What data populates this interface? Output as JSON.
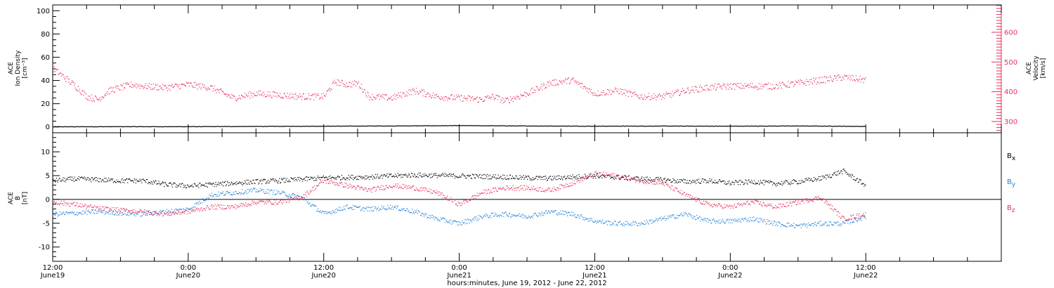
{
  "figure": {
    "footer_label": "hours:minutes, June 19, 2012 - June 22, 2012"
  },
  "colors": {
    "black": "#000000",
    "pink": "#e8305a",
    "blue": "#1f80d8"
  },
  "chart_data": [
    {
      "type": "scatter",
      "panel": "top",
      "ylabel_lines": [
        "ACE",
        "Ion Density",
        "[cm⁻³]"
      ],
      "ylabel_right_lines": [
        "ACE",
        "Velocity",
        "[km/s]"
      ],
      "ylim": [
        -5,
        105
      ],
      "y_ticks": [
        0,
        20,
        40,
        60,
        80,
        100
      ],
      "y_tick_labels": [
        "0",
        "20",
        "40",
        "60",
        "80",
        "100"
      ],
      "ylim_right": [
        262,
        692
      ],
      "y_ticks_right": [
        300,
        400,
        500,
        600
      ],
      "y_tick_labels_right": [
        "300",
        "400",
        "500",
        "600"
      ],
      "x_hours_range": [
        0,
        84
      ],
      "x_tick_hours": [
        0,
        12,
        24,
        36,
        48,
        60,
        72
      ],
      "x_tick_labels": [
        [
          "12:00",
          "June19"
        ],
        [
          "0:00",
          "June20"
        ],
        [
          "12:00",
          "June20"
        ],
        [
          "0:00",
          "June21"
        ],
        [
          "12:00",
          "June21"
        ],
        [
          "0:00",
          "June22"
        ],
        [
          "12:00",
          "June22"
        ]
      ],
      "series": [
        {
          "color": "#000000",
          "axis": "left",
          "x": [
            0,
            6,
            12,
            18,
            24,
            30,
            36,
            42,
            48,
            54,
            60,
            66,
            72
          ],
          "y": [
            0.5,
            0.6,
            0.6,
            0.8,
            1.0,
            1.2,
            1.5,
            1.2,
            1.0,
            1.1,
            1.0,
            1.2,
            0.8
          ]
        },
        {
          "color": "#e8305a",
          "axis": "right",
          "x": [
            0,
            1,
            2,
            3,
            4,
            5,
            6,
            7,
            8,
            10,
            12,
            14,
            16,
            18,
            20,
            22,
            24,
            25,
            26,
            27,
            28,
            30,
            32,
            34,
            36,
            38,
            39,
            40,
            42,
            44,
            46,
            48,
            50,
            52,
            54,
            56,
            58,
            60,
            62,
            64,
            66,
            68,
            70,
            72
          ],
          "y": [
            480,
            450,
            420,
            385,
            375,
            405,
            415,
            425,
            420,
            415,
            425,
            415,
            380,
            395,
            390,
            385,
            385,
            435,
            425,
            430,
            385,
            380,
            405,
            385,
            380,
            375,
            385,
            370,
            395,
            430,
            440,
            395,
            405,
            385,
            385,
            405,
            415,
            420,
            420,
            420,
            430,
            440,
            450,
            440
          ]
        }
      ]
    },
    {
      "type": "scatter",
      "panel": "bottom",
      "ylabel_lines": [
        "ACE",
        "B",
        "[nT]"
      ],
      "ylim": [
        -13,
        14
      ],
      "y_ticks": [
        -10,
        -5,
        0,
        5,
        10
      ],
      "y_tick_labels": [
        "-10",
        "-5",
        "0",
        "5",
        "10"
      ],
      "x_hours_range": [
        0,
        84
      ],
      "x_tick_hours": [
        0,
        12,
        24,
        36,
        48,
        60,
        72
      ],
      "legend_position": "right",
      "legend": [
        {
          "text": "B",
          "sub": "x",
          "color": "#000000"
        },
        {
          "text": "B",
          "sub": "y",
          "color": "#1f80d8"
        },
        {
          "text": "B",
          "sub": "z",
          "color": "#e8305a"
        }
      ],
      "series": [
        {
          "color": "#000000",
          "x": [
            0,
            2,
            4,
            6,
            8,
            10,
            12,
            14,
            16,
            18,
            20,
            22,
            24,
            26,
            28,
            30,
            32,
            34,
            36,
            38,
            40,
            42,
            44,
            46,
            48,
            50,
            52,
            54,
            56,
            58,
            60,
            62,
            64,
            66,
            68,
            70,
            72
          ],
          "y": [
            4,
            4.4,
            4.2,
            4,
            4,
            3.2,
            2.9,
            3.2,
            3.5,
            3.8,
            4,
            4.3,
            4.6,
            4.7,
            4.8,
            5,
            5.2,
            5.1,
            5,
            4.9,
            4.8,
            4.6,
            4.5,
            4.8,
            5,
            4.7,
            4.4,
            4.2,
            3.8,
            4,
            3.5,
            3.8,
            3.4,
            3.8,
            4.5,
            6,
            3
          ]
        },
        {
          "color": "#1f80d8",
          "x": [
            0,
            2,
            4,
            6,
            8,
            10,
            12,
            14,
            16,
            18,
            20,
            22,
            24,
            26,
            28,
            30,
            32,
            34,
            36,
            38,
            40,
            42,
            44,
            46,
            48,
            50,
            52,
            54,
            56,
            58,
            60,
            62,
            64,
            66,
            68,
            70,
            72
          ],
          "y": [
            -3,
            -2.8,
            -2.5,
            -2.8,
            -3,
            -2.5,
            -2,
            1,
            1.5,
            2,
            1.5,
            0.5,
            -3,
            -1.5,
            -2,
            -1.5,
            -2.5,
            -4,
            -5,
            -3.5,
            -3,
            -3.5,
            -2.5,
            -3,
            -4.5,
            -5,
            -5,
            -4,
            -3,
            -4.5,
            -4.5,
            -4,
            -5,
            -5.5,
            -5,
            -5,
            -3.5
          ]
        },
        {
          "color": "#e8305a",
          "x": [
            0,
            2,
            4,
            6,
            8,
            10,
            12,
            14,
            16,
            18,
            20,
            22,
            24,
            26,
            28,
            30,
            32,
            34,
            36,
            38,
            40,
            42,
            44,
            46,
            48,
            50,
            52,
            54,
            56,
            58,
            60,
            62,
            64,
            66,
            68,
            70,
            72
          ],
          "y": [
            -0.5,
            -1,
            -1.8,
            -2.2,
            -2.5,
            -3,
            -2.5,
            -1.5,
            -1.5,
            -0.5,
            -0.5,
            0.5,
            4,
            3,
            2,
            3,
            2.5,
            1.5,
            -1,
            1.5,
            2.5,
            2.5,
            2,
            3.5,
            5.5,
            5,
            4,
            3.5,
            1,
            -1,
            -1.5,
            -0.5,
            -1.5,
            -0.5,
            0.5,
            -4,
            -3
          ]
        }
      ]
    }
  ]
}
